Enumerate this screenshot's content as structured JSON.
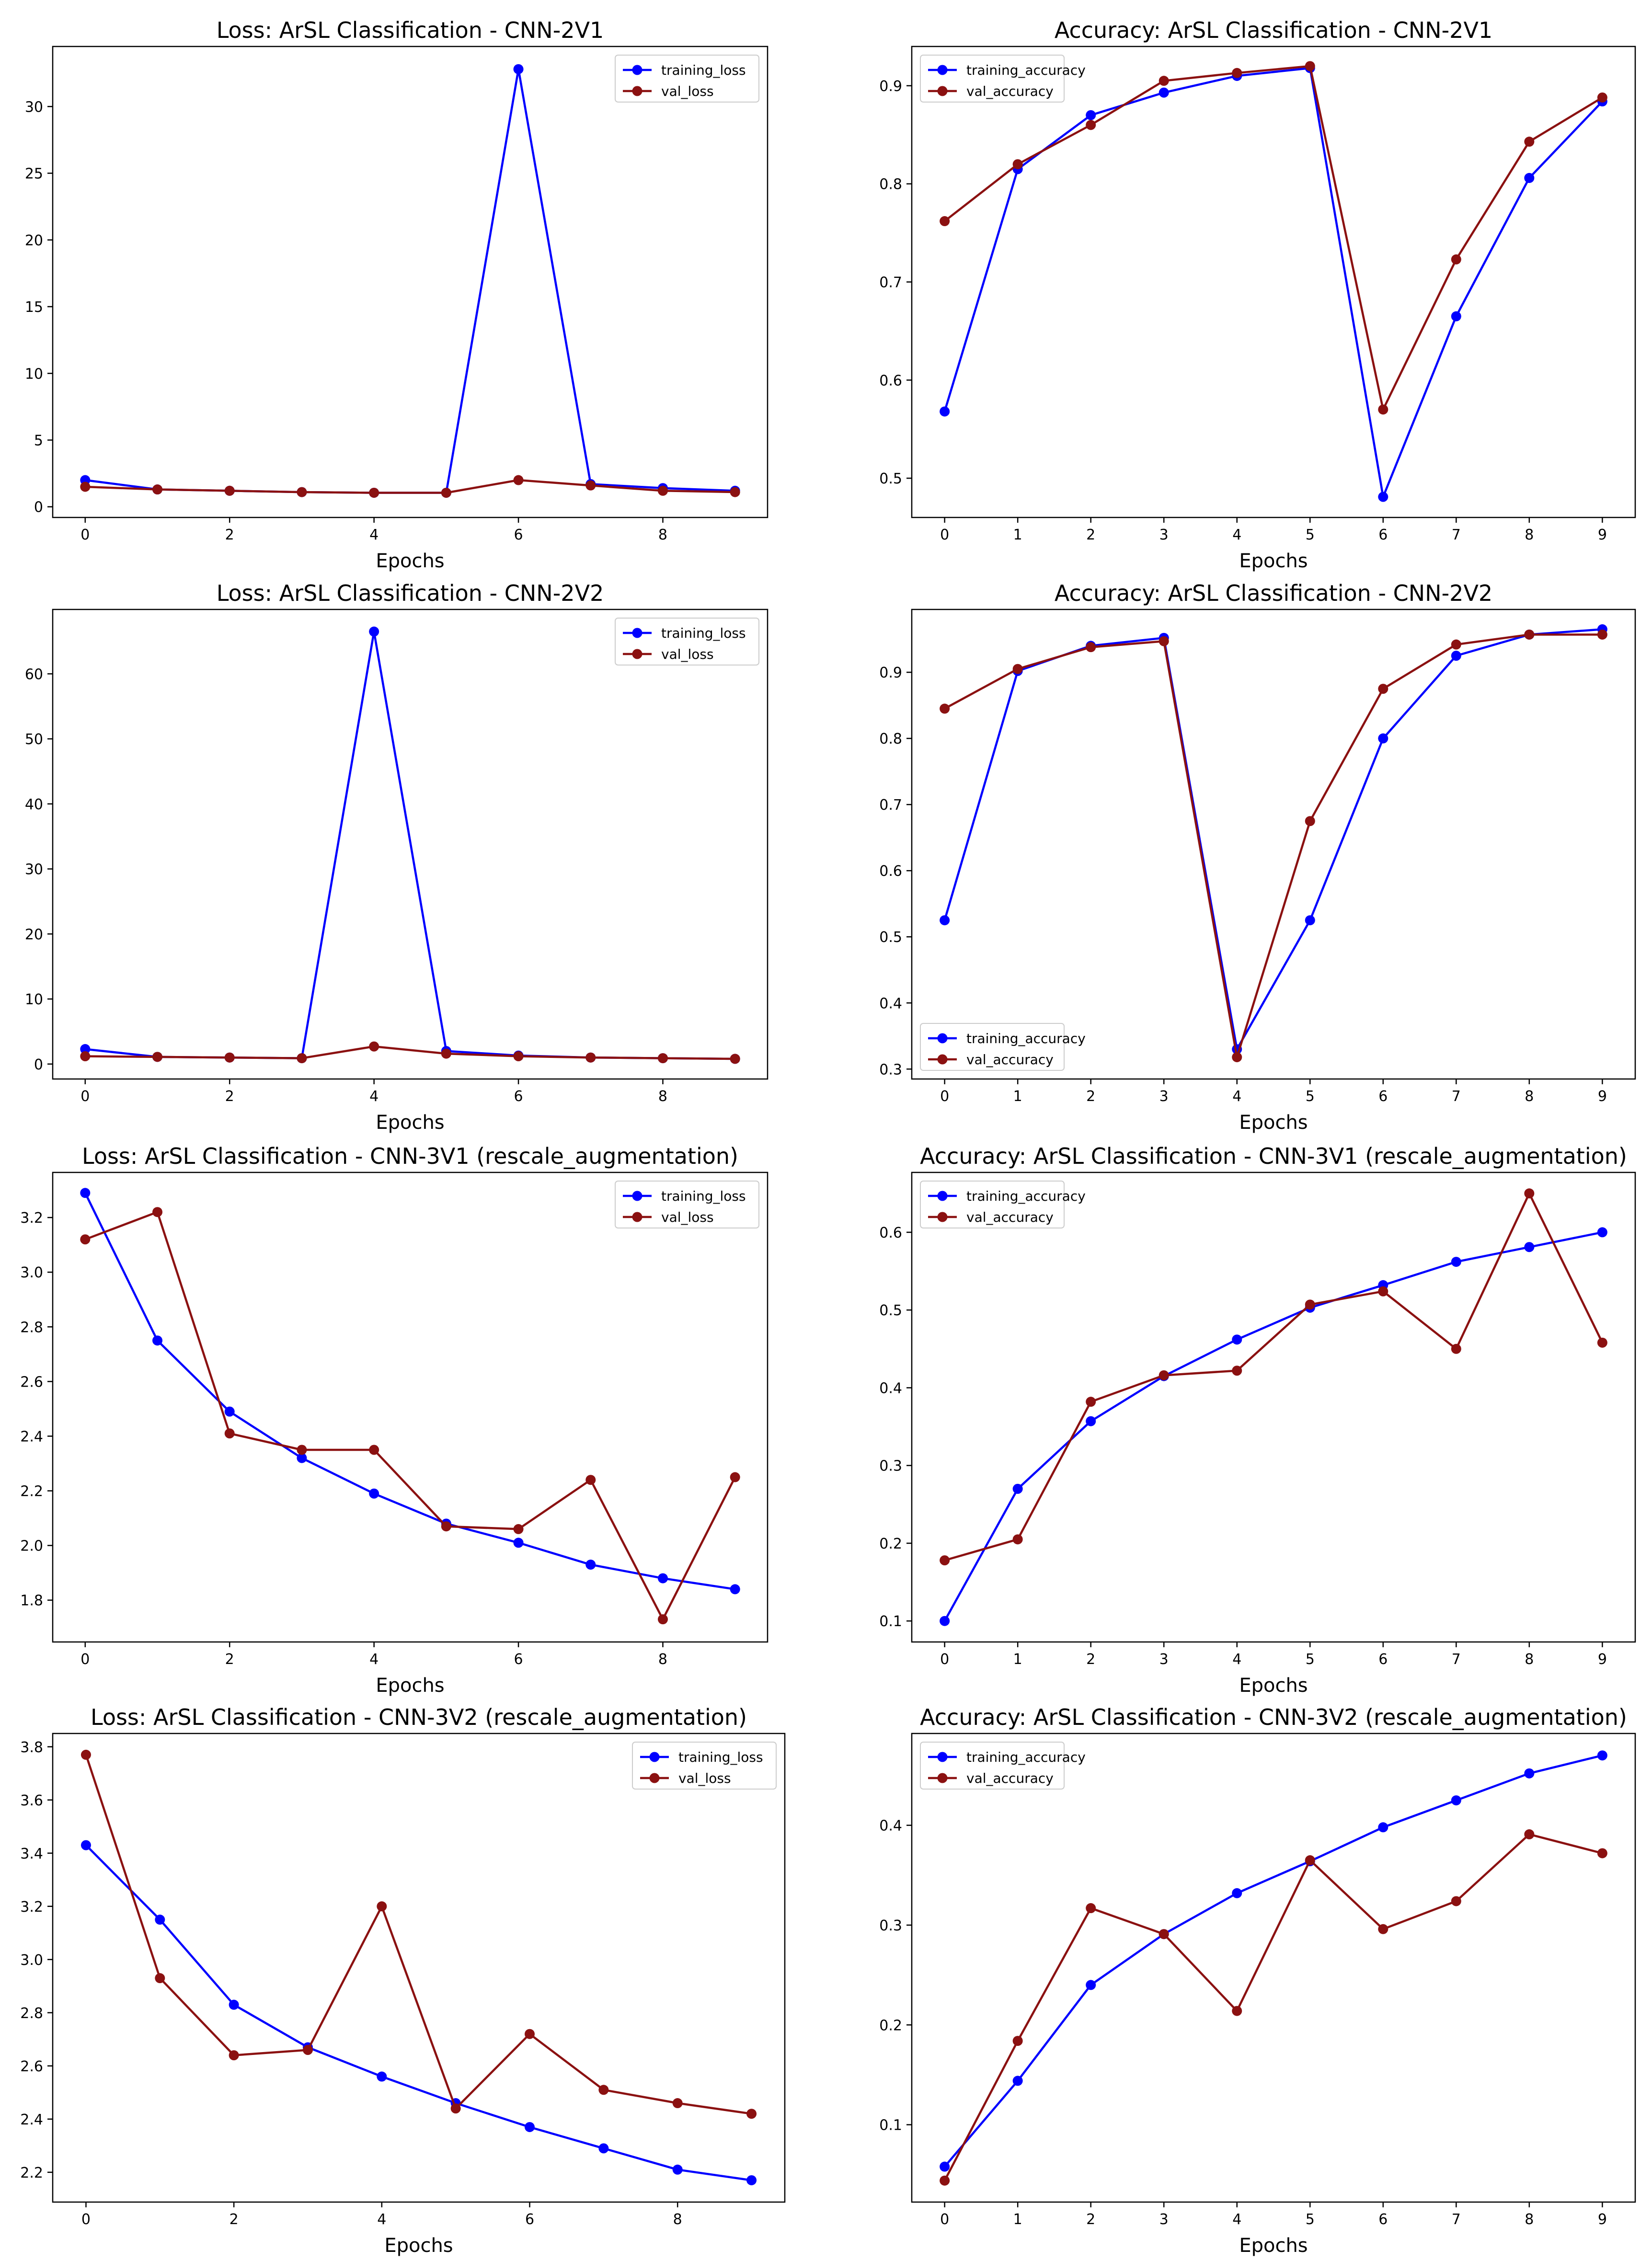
{
  "colors": {
    "training": "#0000ff",
    "validation": "#8b1111"
  },
  "chart_data": [
    {
      "type": "line",
      "title": "Loss: ArSL Classification - CNN-2V1",
      "xlabel": "Epochs",
      "ylabel": "",
      "x": [
        0,
        1,
        2,
        3,
        4,
        5,
        6,
        7,
        8,
        9
      ],
      "xticks": [
        0,
        2,
        4,
        6,
        8
      ],
      "yticks": [
        0,
        5,
        10,
        15,
        20,
        25,
        30
      ],
      "xlim": [
        -0.45,
        9.45
      ],
      "ylim": [
        -0.8,
        34.5
      ],
      "grid": false,
      "legend_position": "top-right",
      "series": [
        {
          "name": "training_loss",
          "color_key": "training",
          "values": [
            2.0,
            1.3,
            1.2,
            1.1,
            1.05,
            1.05,
            32.8,
            1.7,
            1.4,
            1.2
          ]
        },
        {
          "name": "val_loss",
          "color_key": "validation",
          "values": [
            1.5,
            1.3,
            1.2,
            1.1,
            1.05,
            1.05,
            2.0,
            1.6,
            1.2,
            1.1
          ]
        }
      ]
    },
    {
      "type": "line",
      "title": "Accuracy: ArSL Classification - CNN-2V1",
      "xlabel": "Epochs",
      "ylabel": "",
      "x": [
        0,
        1,
        2,
        3,
        4,
        5,
        6,
        7,
        8,
        9
      ],
      "xticks": [
        0,
        1,
        2,
        3,
        4,
        5,
        6,
        7,
        8,
        9
      ],
      "yticks": [
        0.5,
        0.6,
        0.7,
        0.8,
        0.9
      ],
      "xlim": [
        -0.45,
        9.45
      ],
      "ylim": [
        0.46,
        0.94
      ],
      "grid": false,
      "legend_position": "top-left",
      "series": [
        {
          "name": "training_accuracy",
          "color_key": "training",
          "values": [
            0.568,
            0.815,
            0.87,
            0.893,
            0.91,
            0.918,
            0.481,
            0.665,
            0.806,
            0.884
          ]
        },
        {
          "name": "val_accuracy",
          "color_key": "validation",
          "values": [
            0.762,
            0.82,
            0.86,
            0.905,
            0.913,
            0.92,
            0.57,
            0.723,
            0.843,
            0.888
          ]
        }
      ]
    },
    {
      "type": "line",
      "title": "Loss: ArSL Classification - CNN-2V2",
      "xlabel": "Epochs",
      "ylabel": "",
      "x": [
        0,
        1,
        2,
        3,
        4,
        5,
        6,
        7,
        8,
        9
      ],
      "xticks": [
        0,
        2,
        4,
        6,
        8
      ],
      "yticks": [
        0,
        10,
        20,
        30,
        40,
        50,
        60
      ],
      "xlim": [
        -0.45,
        9.45
      ],
      "ylim": [
        -2.3,
        69.9
      ],
      "grid": false,
      "legend_position": "top-right",
      "series": [
        {
          "name": "training_loss",
          "color_key": "training",
          "values": [
            2.3,
            1.1,
            1.0,
            0.9,
            66.5,
            2.0,
            1.3,
            1.0,
            0.9,
            0.8
          ]
        },
        {
          "name": "val_loss",
          "color_key": "validation",
          "values": [
            1.2,
            1.1,
            1.0,
            0.9,
            2.7,
            1.6,
            1.2,
            1.0,
            0.9,
            0.8
          ]
        }
      ]
    },
    {
      "type": "line",
      "title": "Accuracy: ArSL Classification - CNN-2V2",
      "xlabel": "Epochs",
      "ylabel": "",
      "x": [
        0,
        1,
        2,
        3,
        4,
        5,
        6,
        7,
        8,
        9
      ],
      "xticks": [
        0,
        1,
        2,
        3,
        4,
        5,
        6,
        7,
        8,
        9
      ],
      "yticks": [
        0.3,
        0.4,
        0.5,
        0.6,
        0.7,
        0.8,
        0.9
      ],
      "xlim": [
        -0.45,
        9.45
      ],
      "ylim": [
        0.285,
        0.995
      ],
      "grid": false,
      "legend_position": "bottom-left",
      "series": [
        {
          "name": "training_accuracy",
          "color_key": "training",
          "values": [
            0.525,
            0.902,
            0.94,
            0.952,
            0.33,
            0.525,
            0.8,
            0.925,
            0.957,
            0.965
          ]
        },
        {
          "name": "val_accuracy",
          "color_key": "validation",
          "values": [
            0.845,
            0.905,
            0.938,
            0.947,
            0.318,
            0.675,
            0.875,
            0.942,
            0.957,
            0.957
          ]
        }
      ]
    },
    {
      "type": "line",
      "title": "Loss: ArSL Classification - CNN-3V1 (rescale_augmentation)",
      "xlabel": "Epochs",
      "ylabel": "",
      "x": [
        0,
        1,
        2,
        3,
        4,
        5,
        6,
        7,
        8,
        9
      ],
      "xticks": [
        0,
        2,
        4,
        6,
        8
      ],
      "yticks": [
        1.8,
        2.0,
        2.2,
        2.4,
        2.6,
        2.8,
        3.0,
        3.2
      ],
      "xlim": [
        -0.45,
        9.45
      ],
      "ylim": [
        1.647,
        3.365
      ],
      "grid": false,
      "legend_position": "top-right",
      "series": [
        {
          "name": "training_loss",
          "color_key": "training",
          "values": [
            3.29,
            2.75,
            2.49,
            2.32,
            2.19,
            2.08,
            2.01,
            1.93,
            1.88,
            1.84
          ]
        },
        {
          "name": "val_loss",
          "color_key": "validation",
          "values": [
            3.12,
            3.22,
            2.41,
            2.35,
            2.35,
            2.07,
            2.06,
            2.24,
            1.73,
            2.25
          ]
        }
      ]
    },
    {
      "type": "line",
      "title": "Accuracy: ArSL Classification - CNN-3V1 (rescale_augmentation)",
      "xlabel": "Epochs",
      "ylabel": "",
      "x": [
        0,
        1,
        2,
        3,
        4,
        5,
        6,
        7,
        8,
        9
      ],
      "xticks": [
        0,
        1,
        2,
        3,
        4,
        5,
        6,
        7,
        8,
        9
      ],
      "yticks": [
        0.1,
        0.2,
        0.3,
        0.4,
        0.5,
        0.6
      ],
      "xlim": [
        -0.45,
        9.45
      ],
      "ylim": [
        0.073,
        0.677
      ],
      "grid": false,
      "legend_position": "top-left",
      "series": [
        {
          "name": "training_accuracy",
          "color_key": "training",
          "values": [
            0.1,
            0.27,
            0.357,
            0.415,
            0.462,
            0.503,
            0.532,
            0.562,
            0.581,
            0.6
          ]
        },
        {
          "name": "val_accuracy",
          "color_key": "validation",
          "values": [
            0.178,
            0.205,
            0.382,
            0.416,
            0.422,
            0.507,
            0.524,
            0.45,
            0.65,
            0.458
          ]
        }
      ]
    },
    {
      "type": "line",
      "title": "Loss: ArSL Classification - CNN-3V2 (rescale_augmentation)",
      "xlabel": "Epochs",
      "ylabel": "",
      "x": [
        0,
        1,
        2,
        3,
        4,
        5,
        6,
        7,
        8,
        9
      ],
      "xticks": [
        0,
        2,
        4,
        6,
        8
      ],
      "yticks": [
        2.2,
        2.4,
        2.6,
        2.8,
        3.0,
        3.2,
        3.4,
        3.6,
        3.8
      ],
      "xlim": [
        -0.45,
        9.45
      ],
      "ylim": [
        2.088,
        3.85
      ],
      "grid": false,
      "legend_position": "top-right",
      "series": [
        {
          "name": "training_loss",
          "color_key": "training",
          "values": [
            3.43,
            3.15,
            2.83,
            2.67,
            2.56,
            2.46,
            2.37,
            2.29,
            2.21,
            2.17
          ]
        },
        {
          "name": "val_loss",
          "color_key": "validation",
          "values": [
            3.77,
            2.93,
            2.64,
            2.66,
            3.2,
            2.44,
            2.72,
            2.51,
            2.46,
            2.42
          ]
        }
      ]
    },
    {
      "type": "line",
      "title": "Accuracy: ArSL Classification - CNN-3V2 (rescale_augmentation)",
      "xlabel": "Epochs",
      "ylabel": "",
      "x": [
        0,
        1,
        2,
        3,
        4,
        5,
        6,
        7,
        8,
        9
      ],
      "xticks": [
        0,
        1,
        2,
        3,
        4,
        5,
        6,
        7,
        8,
        9
      ],
      "yticks": [
        0.1,
        0.2,
        0.3,
        0.4
      ],
      "xlim": [
        -0.45,
        9.45
      ],
      "ylim": [
        0.0225,
        0.492
      ],
      "grid": false,
      "legend_position": "top-left",
      "series": [
        {
          "name": "training_accuracy",
          "color_key": "training",
          "values": [
            0.058,
            0.144,
            0.24,
            0.291,
            0.332,
            0.364,
            0.398,
            0.425,
            0.452,
            0.47
          ]
        },
        {
          "name": "val_accuracy",
          "color_key": "validation",
          "values": [
            0.044,
            0.184,
            0.317,
            0.291,
            0.214,
            0.365,
            0.296,
            0.324,
            0.391,
            0.372
          ]
        }
      ]
    }
  ]
}
